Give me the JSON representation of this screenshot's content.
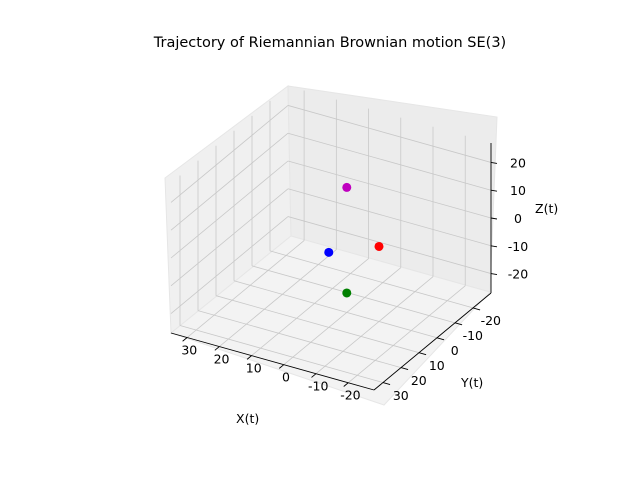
{
  "chart_data": {
    "type": "scatter",
    "projection": "3d",
    "title": "Trajectory of Riemannian Brownian motion SE(3)",
    "xlabel": "X(t)",
    "ylabel": "Y(t)",
    "zlabel": "Z(t)",
    "xlim": [
      -30,
      35
    ],
    "ylim": [
      -28,
      35
    ],
    "zlim": [
      -27,
      27
    ],
    "xticks": [
      "-20",
      "-10",
      "0",
      "10",
      "20",
      "30"
    ],
    "yticks": [
      "-20",
      "-10",
      "0",
      "10",
      "20",
      "30"
    ],
    "zticks": [
      "-20",
      "-10",
      "0",
      "10",
      "20"
    ],
    "grid": true,
    "points": [
      {
        "x": 0,
        "y": 0,
        "z": 18,
        "color": "#bf00bf"
      },
      {
        "x": 10,
        "y": 0,
        "z": 0,
        "color": "#0000ff"
      },
      {
        "x": 0,
        "y": -10,
        "z": 0,
        "color": "#ff0000"
      },
      {
        "x": 0,
        "y": 0,
        "z": -20,
        "color": "#008000"
      }
    ]
  }
}
